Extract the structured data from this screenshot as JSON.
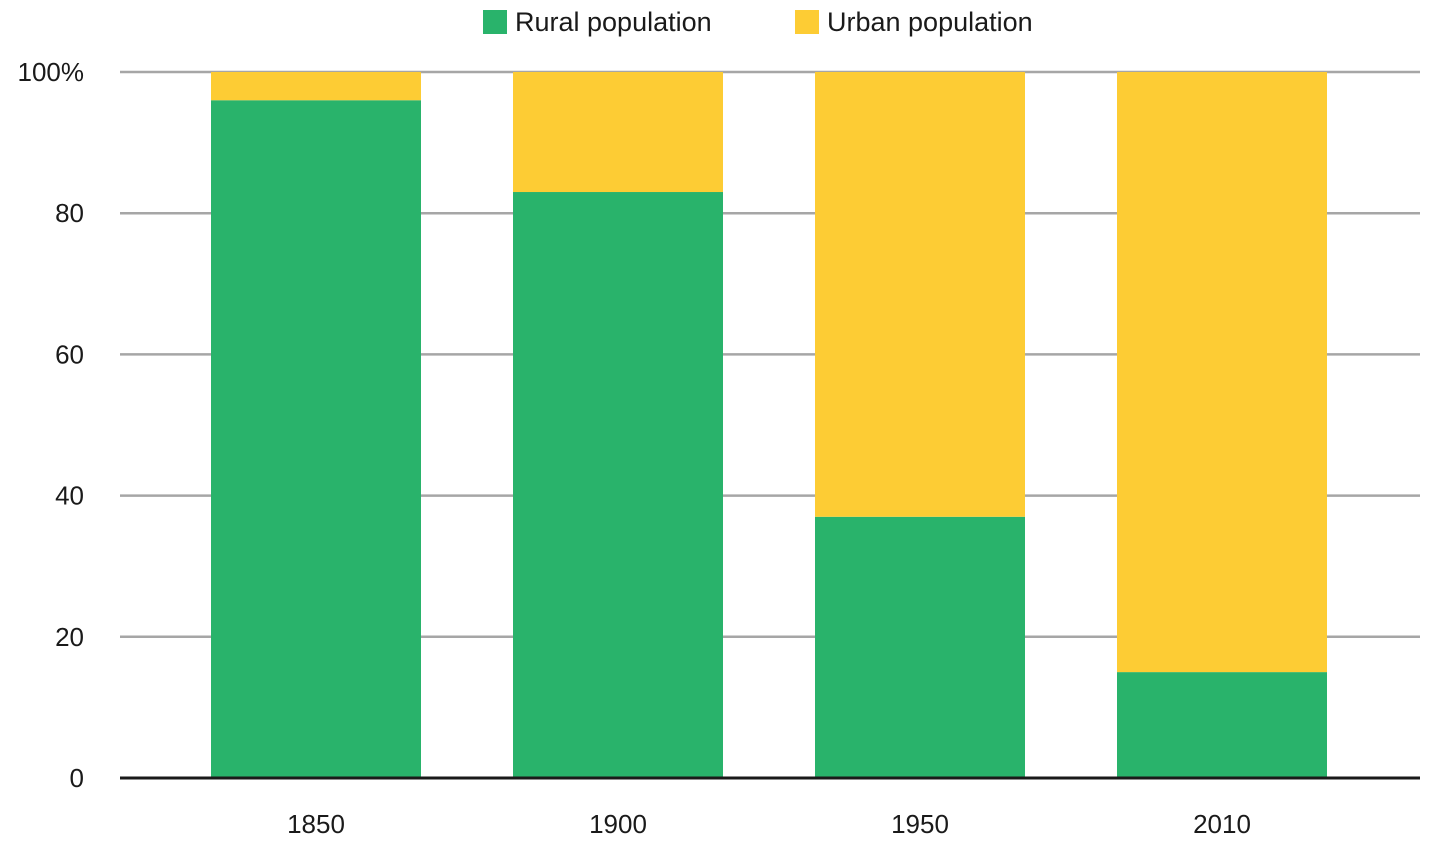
{
  "chart_data": {
    "type": "bar",
    "stacked": true,
    "categories": [
      "1850",
      "1900",
      "1950",
      "2010"
    ],
    "series": [
      {
        "name": "Rural population",
        "color": "#29b36b",
        "values": [
          96,
          83,
          37,
          15
        ]
      },
      {
        "name": "Urban population",
        "color": "#fdcc34",
        "values": [
          4,
          17,
          63,
          85
        ]
      }
    ],
    "title": "",
    "xlabel": "",
    "ylabel": "",
    "ylim": [
      0,
      100
    ],
    "yticks": [
      "0",
      "20",
      "40",
      "60",
      "80",
      "100%"
    ],
    "grid": true,
    "legend_position": "top-center"
  }
}
